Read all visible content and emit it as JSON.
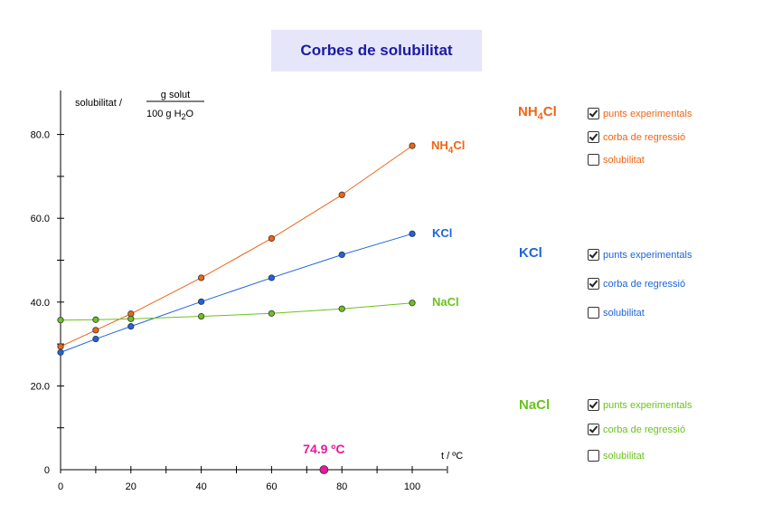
{
  "title": "Corbes de solubilitat",
  "slider_value_text": "74.9 ºC",
  "slider_value": 74.9,
  "chart_data": {
    "type": "line",
    "ylabel_prefix": "solubilitat /",
    "ylabel_num": "g solut",
    "ylabel_den_pre": "100 g H",
    "ylabel_den_sub": "2",
    "ylabel_den_post": "O",
    "xlabel": "t / ºC",
    "xlim": [
      0,
      110
    ],
    "ylim": [
      0,
      90
    ],
    "x_ticks": [
      "0",
      "20",
      "40",
      "60",
      "80",
      "100"
    ],
    "x_tick_values": [
      0,
      20,
      40,
      60,
      80,
      100
    ],
    "y_ticks": [
      "0",
      "20.0",
      "40.0",
      "60.0",
      "80.0"
    ],
    "y_tick_values": [
      0,
      20,
      40,
      60,
      80
    ],
    "series": [
      {
        "name": "NH4Cl",
        "label_main": "NH",
        "label_sub": "4",
        "label_post": "Cl",
        "color": "#f06414",
        "x": [
          0,
          10,
          20,
          40,
          60,
          80,
          100
        ],
        "y": [
          29.4,
          33.3,
          37.2,
          45.8,
          55.2,
          65.6,
          77.3
        ]
      },
      {
        "name": "KCl",
        "label_main": "KCl",
        "label_sub": "",
        "label_post": "",
        "color": "#1e64dc",
        "x": [
          0,
          10,
          20,
          40,
          60,
          80,
          100
        ],
        "y": [
          28.0,
          31.2,
          34.2,
          40.1,
          45.8,
          51.3,
          56.3
        ]
      },
      {
        "name": "NaCl",
        "label_main": "NaCl",
        "label_sub": "",
        "label_post": "",
        "color": "#6cc21e",
        "x": [
          0,
          10,
          20,
          40,
          60,
          80,
          100
        ],
        "y": [
          35.7,
          35.8,
          36.0,
          36.6,
          37.3,
          38.4,
          39.8
        ]
      }
    ]
  },
  "panels": [
    {
      "name": "nh4cl",
      "title_main": "NH",
      "title_sub": "4",
      "title_post": "Cl",
      "color": "#f06414",
      "options": [
        {
          "label": "punts experimentals",
          "checked": true
        },
        {
          "label": "corba de regressió",
          "checked": true
        },
        {
          "label": "solubilitat",
          "checked": false
        }
      ]
    },
    {
      "name": "kcl",
      "title_main": "KCl",
      "title_sub": "",
      "title_post": "",
      "color": "#1e64dc",
      "options": [
        {
          "label": "punts experimentals",
          "checked": true
        },
        {
          "label": "corba de regressió",
          "checked": true
        },
        {
          "label": "solubilitat",
          "checked": false
        }
      ]
    },
    {
      "name": "nacl",
      "title_main": "NaCl",
      "title_sub": "",
      "title_post": "",
      "color": "#6cc21e",
      "options": [
        {
          "label": "punts experimentals",
          "checked": true
        },
        {
          "label": "corba de regressió",
          "checked": true
        },
        {
          "label": "solubilitat",
          "checked": false
        }
      ]
    }
  ],
  "colors": {
    "slider": "#e6189c",
    "title_text": "#1a1aa6",
    "title_bg": "#e6e6fa"
  }
}
